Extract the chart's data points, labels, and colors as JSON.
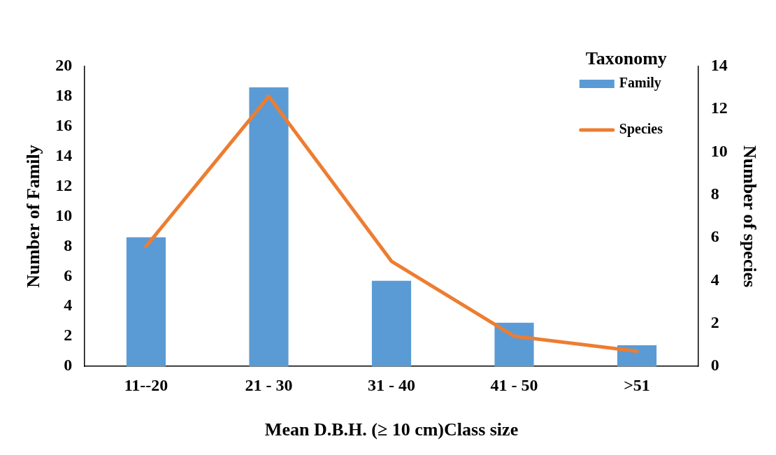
{
  "chart_data": {
    "type": "bar",
    "xlabel": "Mean D.B.H. (≥ 10 cm)Class size",
    "ylabel": "Number of Family",
    "y2label": "Number of species",
    "legend_title": "Taxonomy",
    "categories": [
      "11--20",
      "21 - 30",
      "31 - 40",
      "41 - 50",
      ">51"
    ],
    "series": [
      {
        "name": "Family",
        "color": "#5b9bd5",
        "values": [
          8.6,
          18.6,
          5.7,
          2.9,
          1.4
        ]
      },
      {
        "name": "Species",
        "type": "line",
        "axis": "y2",
        "color": "#ed7d31",
        "values": [
          5.6,
          12.6,
          4.9,
          1.4,
          0.7
        ]
      }
    ],
    "ylim": [
      0,
      20
    ],
    "yticks": [
      0,
      2,
      4,
      6,
      8,
      10,
      12,
      14,
      16,
      18,
      20
    ],
    "y2lim": [
      0,
      14
    ],
    "y2ticks": [
      0,
      2,
      4,
      6,
      8,
      10,
      12,
      14
    ],
    "grid": false,
    "legend": "top right",
    "marker": "none"
  }
}
